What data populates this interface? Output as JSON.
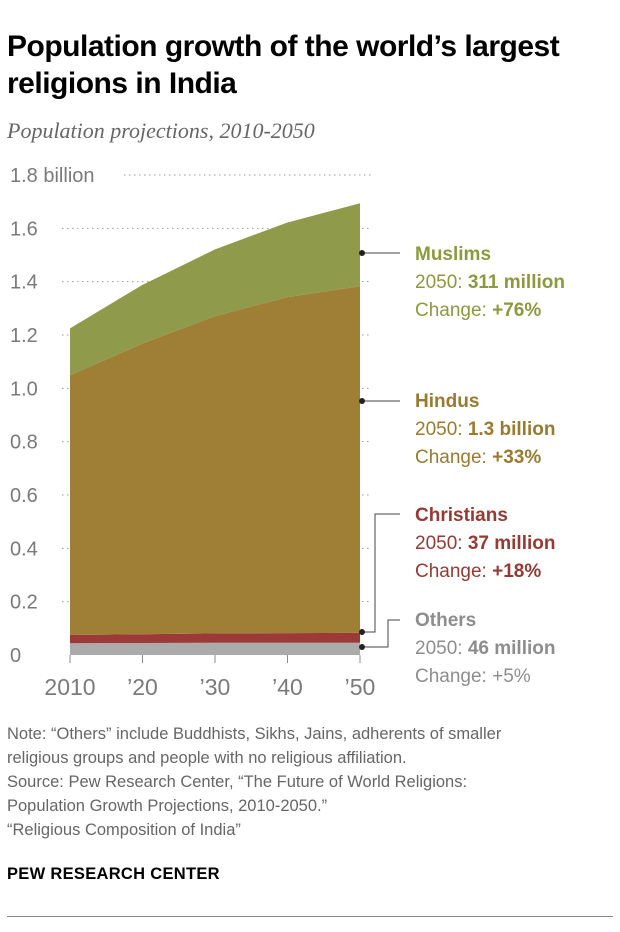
{
  "title": "Population growth of the world’s largest religions in India",
  "subtitle": "Population projections, 2010-2050",
  "chart_data": {
    "type": "area",
    "stacked": true,
    "x": [
      2010,
      2020,
      2030,
      2040,
      2050
    ],
    "x_tick_labels": [
      "2010",
      "’20",
      "’30",
      "’40",
      "’50"
    ],
    "y_tick_labels": [
      "0",
      "0.2",
      "0.4",
      "0.6",
      "0.8",
      "1.0",
      "1.2",
      "1.4",
      "1.6",
      "1.8 billion"
    ],
    "ylim": [
      0,
      1.8
    ],
    "grid": "dotted horizontal",
    "series": [
      {
        "name": "Others",
        "values": [
          0.044,
          0.045,
          0.046,
          0.046,
          0.046
        ],
        "color": "#ababab",
        "label": {
          "line1_prefix": "2050: ",
          "line1_value": "46 million",
          "line2_prefix": "Change: ",
          "line2_value": "+5%"
        }
      },
      {
        "name": "Christians",
        "values": [
          0.031,
          0.033,
          0.035,
          0.036,
          0.037
        ],
        "color": "#9b3a36",
        "label": {
          "line1_prefix": "2050: ",
          "line1_value": "37 million",
          "line2_prefix": "Change: ",
          "line2_value": "+18%"
        }
      },
      {
        "name": "Hindus",
        "values": [
          0.974,
          1.09,
          1.19,
          1.26,
          1.3
        ],
        "color": "#9f7e36",
        "label": {
          "line1_prefix": "2050: ",
          "line1_value": "1.3 billion",
          "line2_prefix": "Change: ",
          "line2_value": "+33%"
        }
      },
      {
        "name": "Muslims",
        "values": [
          0.176,
          0.22,
          0.25,
          0.28,
          0.311
        ],
        "color": "#8f9a4a",
        "label": {
          "line1_prefix": "2050: ",
          "line1_value": "311 million",
          "line2_prefix": "Change: ",
          "line2_value": "+76%"
        }
      }
    ],
    "label_colors": {
      "Muslims": "#8a9a3c",
      "Hindus": "#9a7a2e",
      "Christians": "#963a33",
      "Others": "#8d8d8d"
    }
  },
  "notes": [
    "Note: “Others” include Buddhists, Sikhs, Jains, adherents of smaller",
    "religious groups and people with no religious affiliation.",
    "Source: Pew Research Center, “The Future of World Religions:",
    "Population Growth Projections, 2010-2050.”",
    "“Religious Composition of India”"
  ],
  "brand": "PEW RESEARCH CENTER"
}
